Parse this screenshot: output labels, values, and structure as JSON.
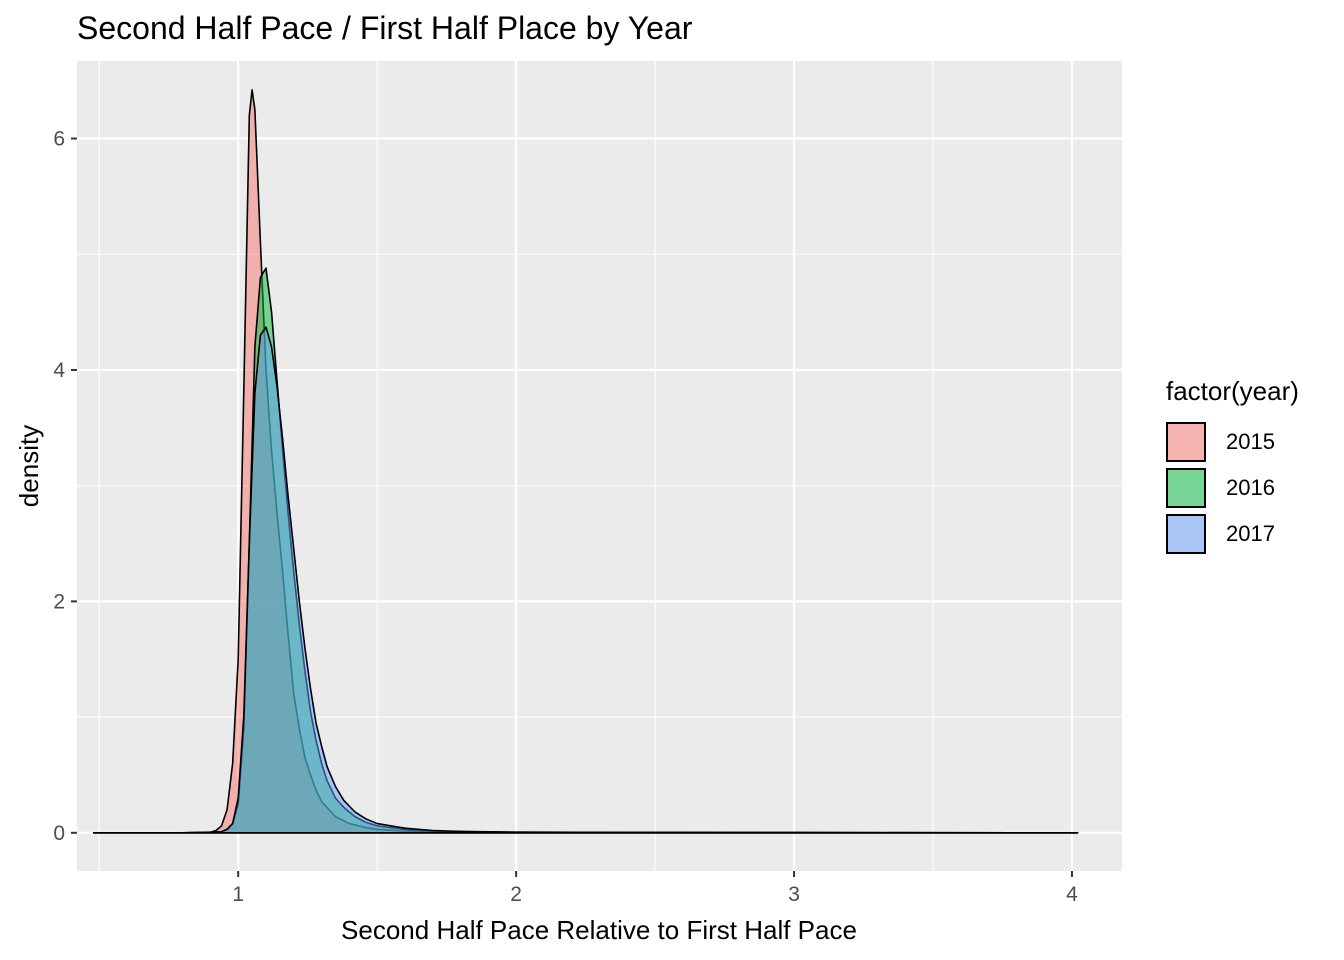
{
  "chart_data": {
    "type": "area",
    "title": "Second Half Pace / First Half Place by Year",
    "xlabel": "Second Half Pace Relative to First Half Pace",
    "ylabel": "density",
    "xlim": [
      0.42,
      4.18
    ],
    "ylim": [
      -0.33,
      6.67
    ],
    "x_ticks": [
      1,
      2,
      3,
      4
    ],
    "y_ticks": [
      0,
      2,
      4,
      6
    ],
    "grid": true,
    "legend_title": "factor(year)",
    "legend_position": "right",
    "series": [
      {
        "name": "2015",
        "color": "#F8766D",
        "x": [
          0.48,
          0.8,
          0.9,
          0.92,
          0.94,
          0.96,
          0.98,
          1.0,
          1.02,
          1.04,
          1.05,
          1.06,
          1.08,
          1.1,
          1.12,
          1.14,
          1.16,
          1.18,
          1.2,
          1.22,
          1.24,
          1.26,
          1.28,
          1.3,
          1.35,
          1.4,
          1.45,
          1.5,
          1.6,
          1.8,
          2.2,
          3.0,
          4.02
        ],
        "values": [
          0.0,
          0.0,
          0.005,
          0.02,
          0.06,
          0.2,
          0.6,
          1.5,
          3.8,
          6.2,
          6.42,
          6.25,
          5.1,
          4.0,
          3.3,
          2.75,
          2.25,
          1.7,
          1.2,
          0.9,
          0.65,
          0.5,
          0.37,
          0.27,
          0.14,
          0.08,
          0.05,
          0.03,
          0.015,
          0.006,
          0.002,
          0.001,
          0.0
        ]
      },
      {
        "name": "2016",
        "color": "#00BA38",
        "x": [
          0.48,
          0.8,
          0.9,
          0.94,
          0.96,
          0.98,
          1.0,
          1.02,
          1.04,
          1.06,
          1.08,
          1.1,
          1.12,
          1.14,
          1.16,
          1.18,
          1.2,
          1.22,
          1.24,
          1.26,
          1.28,
          1.3,
          1.32,
          1.35,
          1.38,
          1.42,
          1.46,
          1.5,
          1.6,
          1.7,
          1.8,
          2.0,
          2.5,
          3.0,
          4.02
        ],
        "values": [
          0.0,
          0.0,
          0.003,
          0.01,
          0.03,
          0.08,
          0.25,
          0.9,
          2.5,
          4.2,
          4.8,
          4.88,
          4.5,
          3.9,
          3.3,
          2.75,
          2.25,
          1.8,
          1.4,
          1.05,
          0.8,
          0.6,
          0.45,
          0.3,
          0.22,
          0.14,
          0.09,
          0.06,
          0.03,
          0.015,
          0.01,
          0.005,
          0.003,
          0.002,
          0.0
        ]
      },
      {
        "name": "2017",
        "color": "#619CFF",
        "x": [
          0.48,
          0.8,
          0.9,
          0.94,
          0.96,
          0.98,
          1.0,
          1.02,
          1.04,
          1.06,
          1.08,
          1.1,
          1.12,
          1.14,
          1.16,
          1.18,
          1.2,
          1.22,
          1.24,
          1.26,
          1.28,
          1.3,
          1.32,
          1.35,
          1.38,
          1.42,
          1.46,
          1.5,
          1.6,
          1.7,
          1.8,
          2.0,
          2.5,
          3.0,
          4.02
        ],
        "values": [
          0.0,
          0.0,
          0.003,
          0.01,
          0.03,
          0.08,
          0.3,
          1.0,
          2.5,
          3.8,
          4.3,
          4.37,
          4.2,
          3.85,
          3.4,
          2.9,
          2.45,
          2.0,
          1.6,
          1.25,
          0.95,
          0.75,
          0.57,
          0.4,
          0.28,
          0.18,
          0.12,
          0.08,
          0.04,
          0.02,
          0.012,
          0.006,
          0.003,
          0.002,
          0.0
        ]
      }
    ]
  }
}
